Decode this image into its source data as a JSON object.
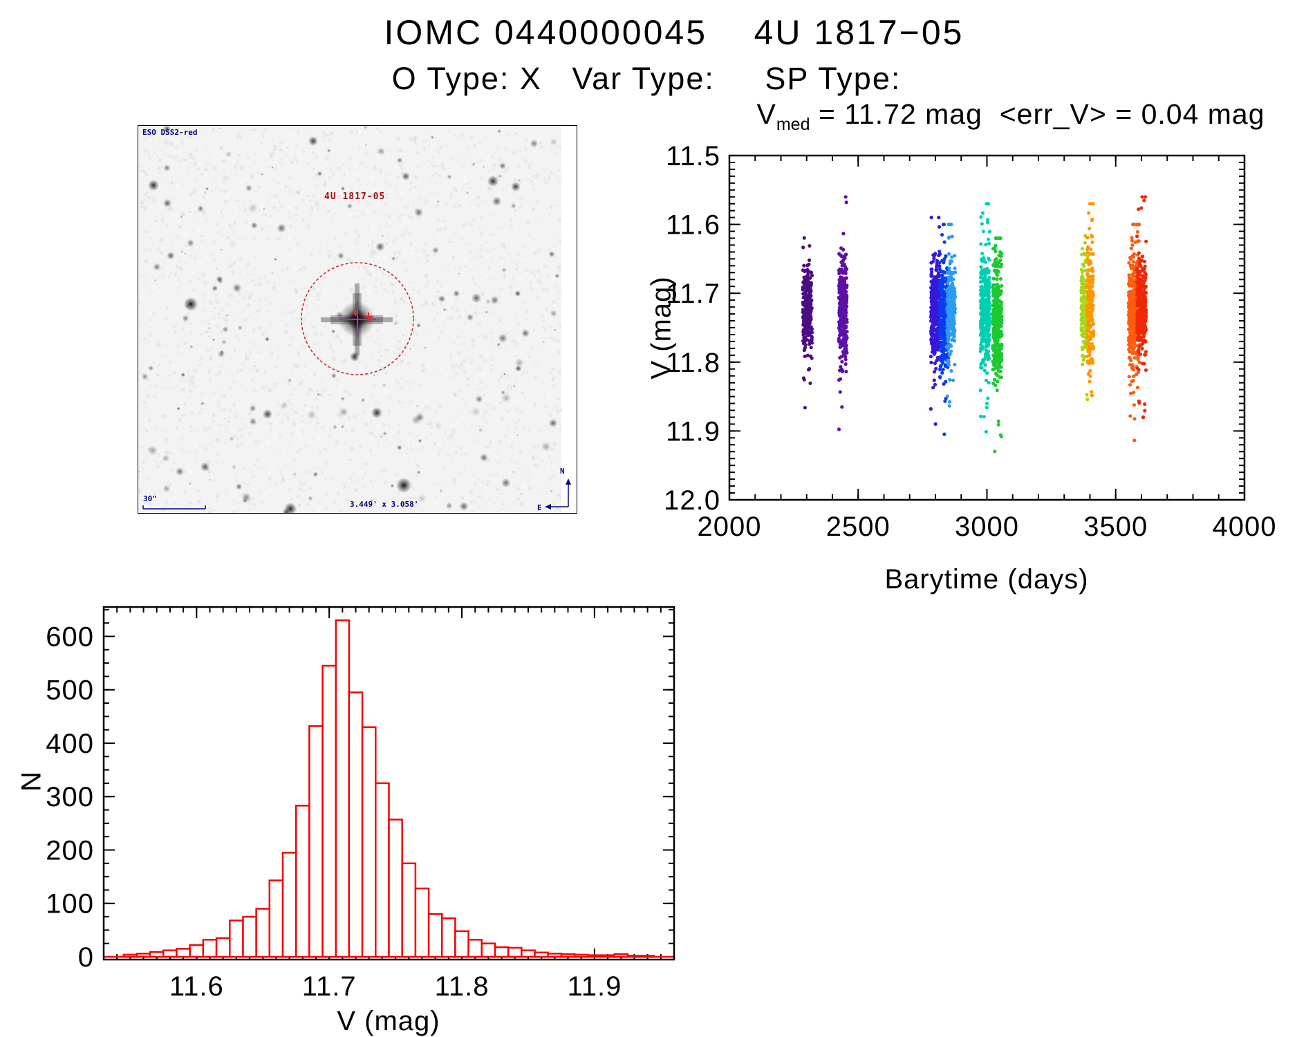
{
  "page": {
    "title": "IOMC 0440000045    4U 1817−05",
    "subtitle": "O Type: X   Var Type:     SP Type:"
  },
  "finder": {
    "survey_label": "ESO DSS2-red",
    "target_label": "4U 1817-05",
    "scale_bar_label": "30\"",
    "fov_label": "3.449' x 3.058'",
    "compass_north_label": "N",
    "compass_east_label": "E",
    "annotation_ink_color": "#000080",
    "target_label_color": "#a01010",
    "circle_color": "#c03028",
    "crosshair_color": "#b428c0"
  },
  "chart_data": [
    {
      "type": "scatter",
      "title": "V_med = 11.72 mag <err_V> = 0.04 mag",
      "title_parts": {
        "base": "V",
        "sub": "med",
        "rest": " = 11.72 mag  <err_V> = 0.04 mag"
      },
      "v_med_mag": 11.72,
      "mean_err_v_mag": 0.04,
      "xlabel": "Barytime (days)",
      "ylabel": "V (mag)",
      "xlim": [
        2000,
        4000
      ],
      "ylim": [
        12.0,
        11.5
      ],
      "xticks": [
        2000,
        2500,
        3000,
        3500,
        4000
      ],
      "yticks": [
        11.5,
        11.6,
        11.7,
        11.8,
        11.9,
        12.0
      ],
      "x_minor_step": 100,
      "y_minor_step": 0.01,
      "legend": "none",
      "grid": false,
      "marker": "filled-dot",
      "series": [
        {
          "name": "epoch-2303",
          "barytime": 2303,
          "color": "#4a0d82",
          "n": 230,
          "v_center": 11.725,
          "v_sigma": 0.034,
          "v_min": 11.59,
          "v_max": 11.87,
          "t_spread": 18
        },
        {
          "name": "epoch-2441",
          "barytime": 2441,
          "color": "#5c10a6",
          "n": 300,
          "v_center": 11.725,
          "v_sigma": 0.038,
          "v_min": 11.56,
          "v_max": 11.92,
          "t_spread": 16
        },
        {
          "name": "epoch-2800",
          "barytime": 2800,
          "color": "#3818d8",
          "n": 340,
          "v_center": 11.725,
          "v_sigma": 0.036,
          "v_min": 11.59,
          "v_max": 11.89,
          "t_spread": 18
        },
        {
          "name": "epoch-2833",
          "barytime": 2833,
          "color": "#0b3cee",
          "n": 300,
          "v_center": 11.73,
          "v_sigma": 0.038,
          "v_min": 11.6,
          "v_max": 11.92,
          "t_spread": 18
        },
        {
          "name": "epoch-2861",
          "barytime": 2861,
          "color": "#2e9bf2",
          "n": 230,
          "v_center": 11.72,
          "v_sigma": 0.036,
          "v_min": 11.6,
          "v_max": 11.93,
          "t_spread": 16
        },
        {
          "name": "epoch-2993",
          "barytime": 2993,
          "color": "#00d0b0",
          "n": 380,
          "v_center": 11.725,
          "v_sigma": 0.04,
          "v_min": 11.57,
          "v_max": 11.93,
          "t_spread": 18
        },
        {
          "name": "epoch-3040",
          "barytime": 3040,
          "color": "#1ec832",
          "n": 330,
          "v_center": 11.74,
          "v_sigma": 0.042,
          "v_min": 11.62,
          "v_max": 11.94,
          "t_spread": 18
        },
        {
          "name": "epoch-3379",
          "barytime": 3379,
          "color": "#a6d816",
          "n": 150,
          "v_center": 11.725,
          "v_sigma": 0.04,
          "v_min": 11.6,
          "v_max": 11.92,
          "t_spread": 13
        },
        {
          "name": "epoch-3401",
          "barytime": 3401,
          "color": "#ff9600",
          "n": 170,
          "v_center": 11.725,
          "v_sigma": 0.044,
          "v_min": 11.57,
          "v_max": 11.92,
          "t_spread": 13
        },
        {
          "name": "epoch-3572",
          "barytime": 3572,
          "color": "#fe5c0e",
          "n": 430,
          "v_center": 11.725,
          "v_sigma": 0.038,
          "v_min": 11.6,
          "v_max": 11.93,
          "t_spread": 22
        },
        {
          "name": "epoch-3600",
          "barytime": 3600,
          "color": "#ec2a0a",
          "n": 330,
          "v_center": 11.72,
          "v_sigma": 0.034,
          "v_min": 11.56,
          "v_max": 11.88,
          "t_spread": 18
        }
      ]
    },
    {
      "type": "bar",
      "title": "",
      "xlabel": "V (mag)",
      "ylabel": "N",
      "xlim": [
        11.53,
        11.96
      ],
      "ylim": [
        0,
        655
      ],
      "xticks": [
        11.6,
        11.7,
        11.8,
        11.9
      ],
      "yticks": [
        0,
        100,
        200,
        300,
        400,
        500,
        600
      ],
      "x_minor_step": 0.01,
      "y_minor_step": 25,
      "bar_color": "#f80000",
      "bar_fill": "#ffffff",
      "bin_start": 11.545,
      "bin_width": 0.01,
      "counts": [
        4,
        6,
        9,
        12,
        15,
        22,
        32,
        35,
        68,
        75,
        90,
        143,
        195,
        283,
        432,
        545,
        630,
        495,
        430,
        325,
        257,
        175,
        128,
        80,
        72,
        48,
        32,
        25,
        18,
        17,
        12,
        8,
        6,
        5,
        4,
        3,
        3,
        5,
        2,
        2
      ]
    }
  ],
  "axis_color": "#000000"
}
